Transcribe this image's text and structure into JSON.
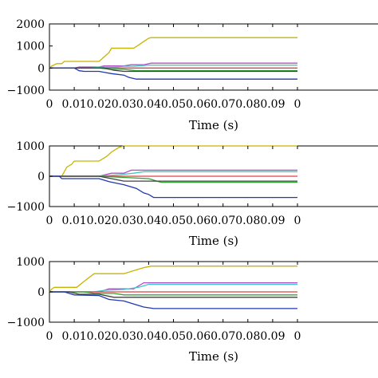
{
  "chart_data": [
    {
      "type": "line",
      "xlabel": "Time (s)",
      "ylabel": "",
      "xlim": [
        0,
        0.1
      ],
      "ylim": [
        -1000,
        2000
      ],
      "xticks": [
        "0",
        "0.01",
        "0.02",
        "0.03",
        "0.04",
        "0.05",
        "0.06",
        "0.07",
        "0.08",
        "0.09",
        "0"
      ],
      "yticks": [
        "2000",
        "1000",
        "0",
        "−1000"
      ],
      "grid": false,
      "series": [
        {
          "color": "#c8b400",
          "x": [
            0,
            0.001,
            0.003,
            0.005,
            0.006,
            0.012,
            0.02,
            0.022,
            0.024,
            0.025,
            0.034,
            0.036,
            0.038,
            0.04,
            0.041,
            0.1
          ],
          "y": [
            0,
            100,
            200,
            200,
            300,
            300,
            300,
            500,
            700,
            900,
            900,
            1050,
            1200,
            1350,
            1380,
            1380
          ]
        },
        {
          "color": "#b04fc8",
          "x": [
            0,
            0.01,
            0.012,
            0.02,
            0.022,
            0.03,
            0.033,
            0.038,
            0.041,
            0.1
          ],
          "y": [
            0,
            0,
            50,
            50,
            100,
            100,
            150,
            150,
            220,
            220
          ]
        },
        {
          "color": "#40c8c8",
          "x": [
            0,
            0.016,
            0.02,
            0.026,
            0.03,
            0.034,
            0.04,
            0.1
          ],
          "y": [
            0,
            0,
            40,
            40,
            80,
            80,
            130,
            130
          ]
        },
        {
          "color": "#e04040",
          "x": [
            0,
            0.1
          ],
          "y": [
            0,
            0
          ]
        },
        {
          "color": "#30a030",
          "x": [
            0,
            0.02,
            0.025,
            0.03,
            0.035,
            0.1
          ],
          "y": [
            0,
            0,
            -60,
            -60,
            -120,
            -120
          ]
        },
        {
          "color": "#404040",
          "x": [
            0,
            0.022,
            0.026,
            0.03,
            0.1
          ],
          "y": [
            0,
            0,
            -100,
            -150,
            -150
          ]
        },
        {
          "color": "#2038b0",
          "x": [
            0,
            0.01,
            0.012,
            0.014,
            0.02,
            0.025,
            0.03,
            0.032,
            0.035,
            0.1
          ],
          "y": [
            0,
            0,
            -120,
            -150,
            -150,
            -250,
            -320,
            -420,
            -500,
            -500
          ]
        }
      ]
    },
    {
      "type": "line",
      "xlabel": "Time (s)",
      "ylabel": "",
      "xlim": [
        0,
        0.1
      ],
      "ylim": [
        -1000,
        1000
      ],
      "xticks": [
        "0",
        "0.01",
        "0.02",
        "0.03",
        "0.04",
        "0.05",
        "0.06",
        "0.07",
        "0.08",
        "0.09",
        "0"
      ],
      "yticks": [
        "1000",
        "0",
        "−1000"
      ],
      "grid": false,
      "series": [
        {
          "color": "#c8b400",
          "x": [
            0,
            0.005,
            0.007,
            0.009,
            0.01,
            0.02,
            0.023,
            0.025,
            0.028,
            0.03,
            0.1
          ],
          "y": [
            0,
            0,
            300,
            400,
            500,
            500,
            650,
            800,
            950,
            1000,
            1000
          ]
        },
        {
          "color": "#b04fc8",
          "x": [
            0,
            0.02,
            0.025,
            0.03,
            0.033,
            0.1
          ],
          "y": [
            0,
            0,
            100,
            100,
            200,
            200
          ]
        },
        {
          "color": "#40c8c8",
          "x": [
            0,
            0.02,
            0.028,
            0.034,
            0.038,
            0.1
          ],
          "y": [
            0,
            0,
            50,
            100,
            150,
            150
          ]
        },
        {
          "color": "#e04040",
          "x": [
            0,
            0.1
          ],
          "y": [
            0,
            0
          ]
        },
        {
          "color": "#30a030",
          "x": [
            0,
            0.02,
            0.04,
            0.045,
            0.1
          ],
          "y": [
            0,
            0,
            -80,
            -200,
            -200
          ]
        },
        {
          "color": "#404040",
          "x": [
            0,
            0.02,
            0.025,
            0.03,
            0.1
          ],
          "y": [
            0,
            0,
            -80,
            -160,
            -160
          ]
        },
        {
          "color": "#2038b0",
          "x": [
            0,
            0.004,
            0.005,
            0.02,
            0.024,
            0.03,
            0.035,
            0.038,
            0.04,
            0.042,
            0.1
          ],
          "y": [
            0,
            0,
            -80,
            -80,
            -180,
            -280,
            -400,
            -550,
            -600,
            -700,
            -700
          ]
        }
      ]
    },
    {
      "type": "line",
      "xlabel": "Time (s)",
      "ylabel": "",
      "xlim": [
        0,
        0.1
      ],
      "ylim": [
        -1000,
        1000
      ],
      "xticks": [
        "0",
        "0.01",
        "0.02",
        "0.03",
        "0.04",
        "0.05",
        "0.06",
        "0.07",
        "0.08",
        "0.09",
        "0"
      ],
      "yticks": [
        "1000",
        "0",
        "−1000"
      ],
      "grid": false,
      "series": [
        {
          "color": "#c8b400",
          "x": [
            0,
            0.001,
            0.002,
            0.011,
            0.014,
            0.018,
            0.03,
            0.034,
            0.038,
            0.041,
            0.1
          ],
          "y": [
            0,
            100,
            150,
            150,
            350,
            600,
            600,
            700,
            800,
            850,
            850
          ]
        },
        {
          "color": "#b04fc8",
          "x": [
            0,
            0.02,
            0.024,
            0.034,
            0.038,
            0.1
          ],
          "y": [
            0,
            0,
            100,
            100,
            300,
            300
          ]
        },
        {
          "color": "#40c8c8",
          "x": [
            0,
            0.018,
            0.022,
            0.03,
            0.036,
            0.04,
            0.1
          ],
          "y": [
            0,
            0,
            50,
            80,
            150,
            250,
            250
          ]
        },
        {
          "color": "#e04040",
          "x": [
            0,
            0.1
          ],
          "y": [
            0,
            0
          ]
        },
        {
          "color": "#30a030",
          "x": [
            0,
            0.014,
            0.018,
            0.026,
            0.03,
            0.1
          ],
          "y": [
            0,
            0,
            -50,
            -50,
            -100,
            -100
          ]
        },
        {
          "color": "#404040",
          "x": [
            0,
            0.008,
            0.012,
            0.02,
            0.026,
            0.1
          ],
          "y": [
            0,
            0,
            -80,
            -80,
            -180,
            -180
          ]
        },
        {
          "color": "#2038b0",
          "x": [
            0,
            0.006,
            0.01,
            0.02,
            0.024,
            0.03,
            0.034,
            0.038,
            0.042,
            0.1
          ],
          "y": [
            0,
            0,
            -100,
            -120,
            -250,
            -300,
            -400,
            -500,
            -550,
            -550
          ]
        }
      ]
    }
  ]
}
